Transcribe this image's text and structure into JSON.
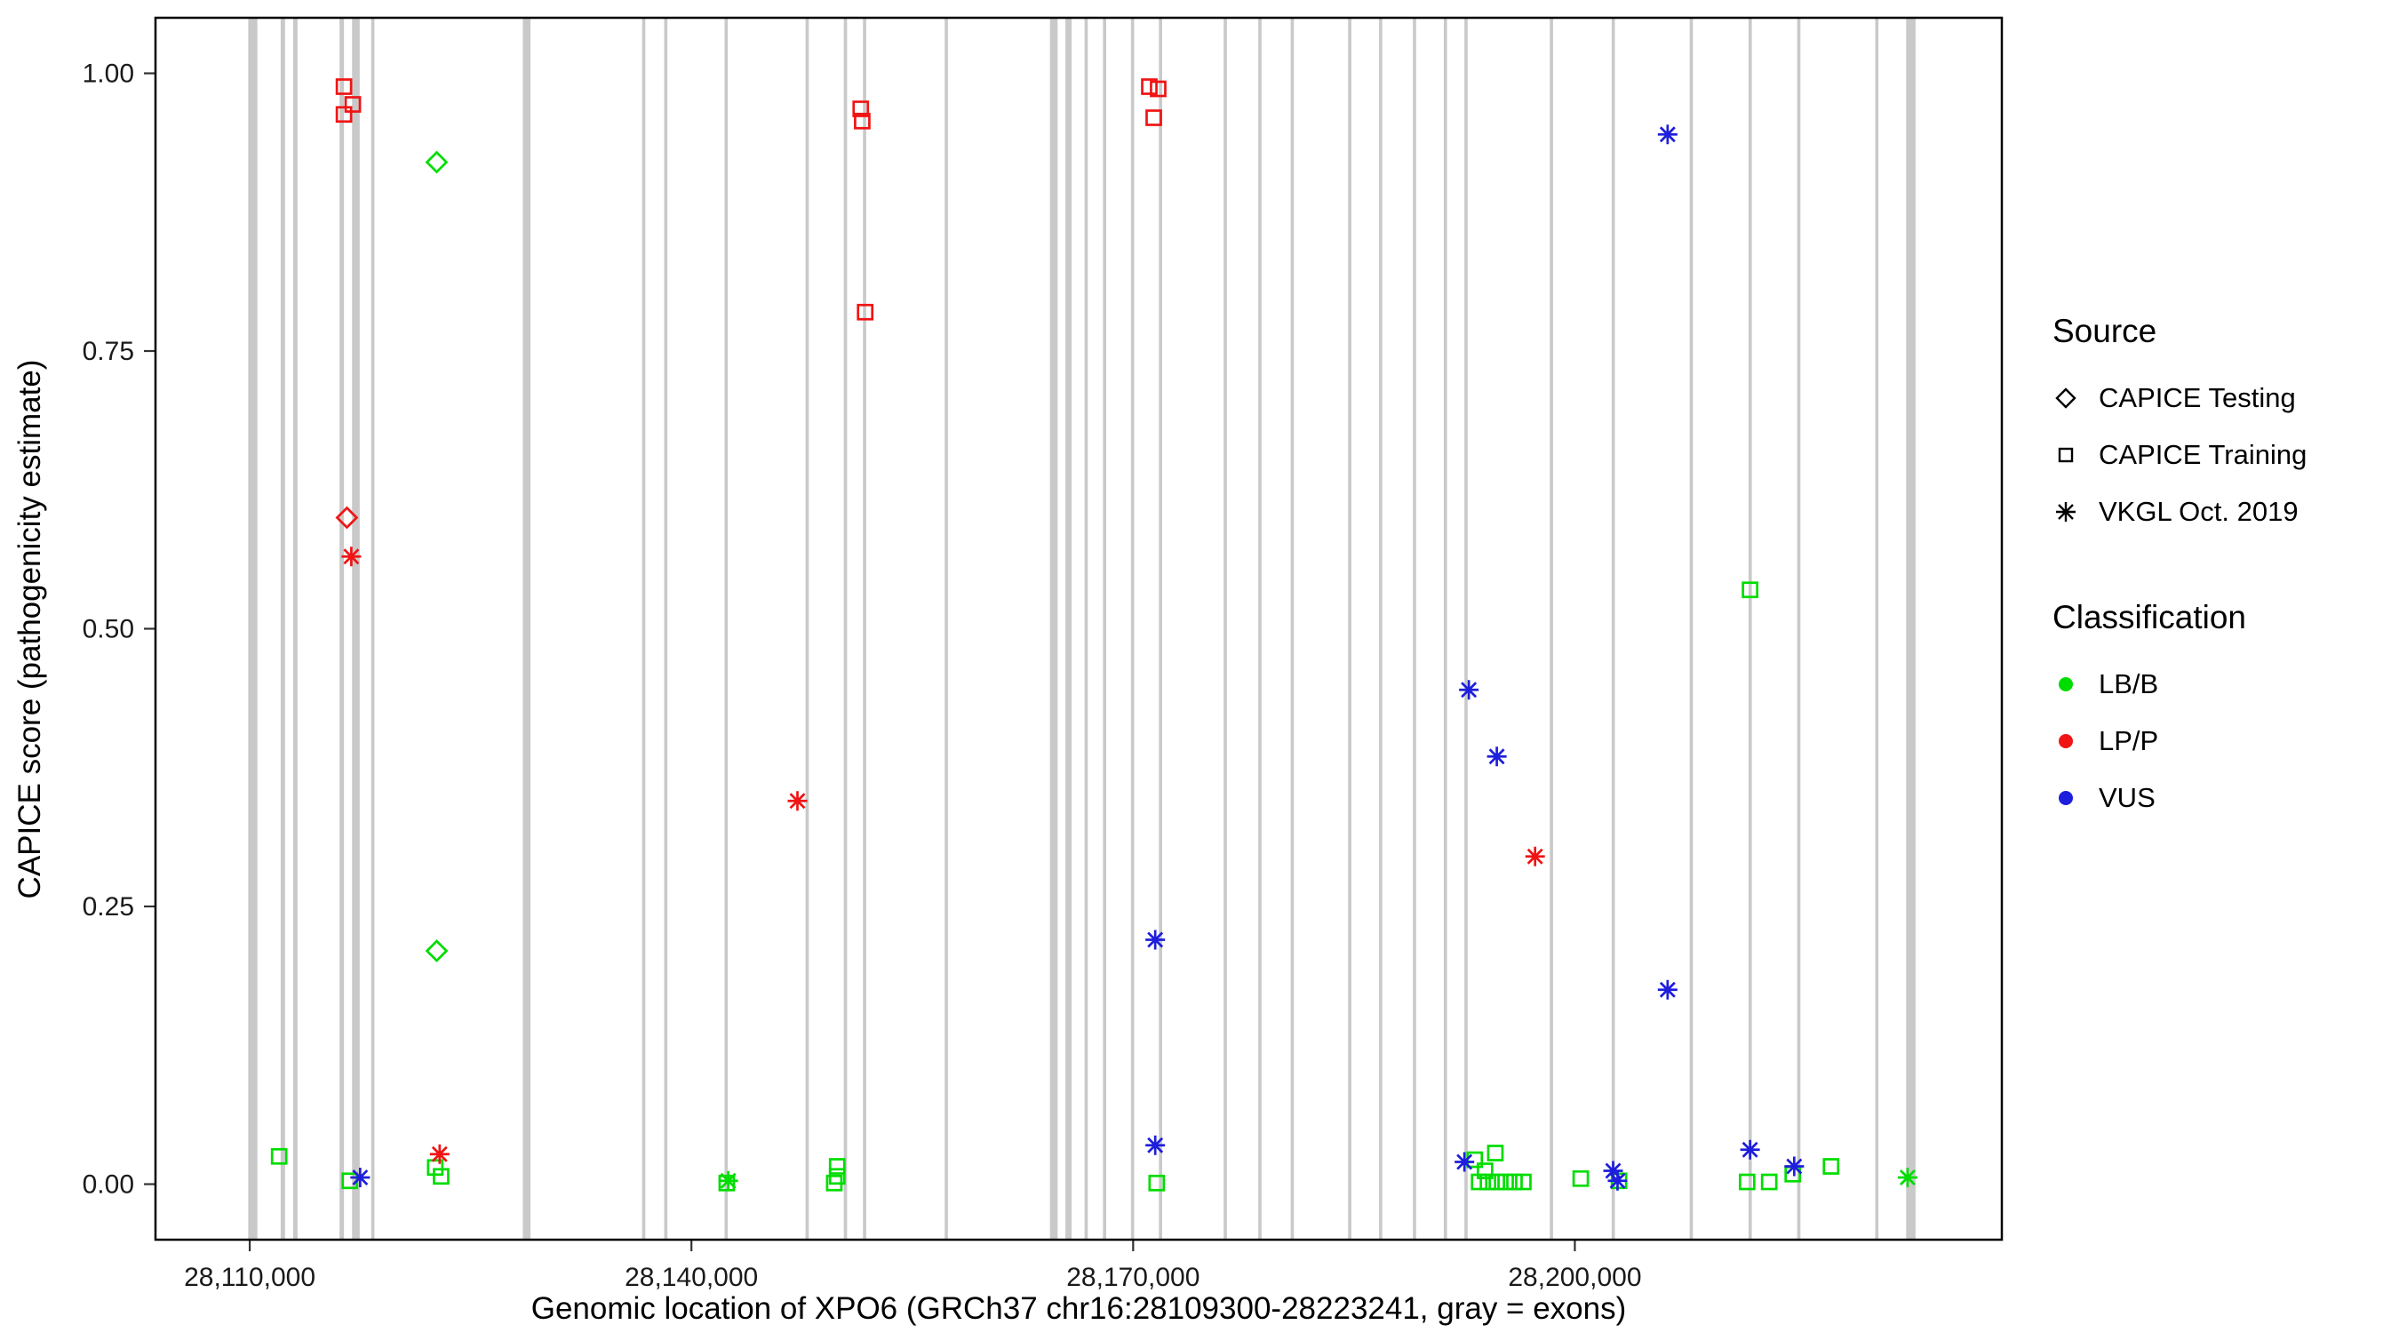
{
  "chart_data": {
    "type": "scatter",
    "title": "",
    "xlabel": "Genomic location of XPO6 (GRCh37 chr16:28109300-28223241, gray = exons)",
    "ylabel": "CAPICE score (pathogenicity estimate)",
    "xlim": [
      28103600,
      28229000
    ],
    "ylim": [
      -0.05,
      1.05
    ],
    "grid": false,
    "legend_position": "right",
    "x_ticks": [
      {
        "value": 28110000,
        "label": "28,110,000"
      },
      {
        "value": 28140000,
        "label": "28,140,000"
      },
      {
        "value": 28170000,
        "label": "28,170,000"
      },
      {
        "value": 28200000,
        "label": "28,200,000"
      }
    ],
    "y_ticks": [
      {
        "value": 0.0,
        "label": "0.00"
      },
      {
        "value": 0.25,
        "label": "0.25"
      },
      {
        "value": 0.5,
        "label": "0.50"
      },
      {
        "value": 0.75,
        "label": "0.75"
      },
      {
        "value": 1.0,
        "label": "1.00"
      }
    ],
    "exon_color": "#c9c9c9",
    "panel_border_color": "#000000",
    "class_colors": {
      "LB/B": "#00dd00",
      "LP/P": "#f01414",
      "VUS": "#1e1edc"
    },
    "exons": [
      [
        28109900,
        620
      ],
      [
        28112100,
        300
      ],
      [
        28112950,
        300
      ],
      [
        28116100,
        300
      ],
      [
        28116950,
        520
      ],
      [
        28118250,
        220
      ],
      [
        28128550,
        520
      ],
      [
        28136650,
        220
      ],
      [
        28138150,
        220
      ],
      [
        28142250,
        220
      ],
      [
        28147750,
        220
      ],
      [
        28150350,
        220
      ],
      [
        28151650,
        220
      ],
      [
        28157200,
        220
      ],
      [
        28164350,
        520
      ],
      [
        28165400,
        420
      ],
      [
        28166700,
        220
      ],
      [
        28167950,
        220
      ],
      [
        28169850,
        220
      ],
      [
        28171750,
        220
      ],
      [
        28176150,
        220
      ],
      [
        28178500,
        220
      ],
      [
        28180700,
        220
      ],
      [
        28184600,
        220
      ],
      [
        28186700,
        220
      ],
      [
        28189000,
        220
      ],
      [
        28191100,
        220
      ],
      [
        28192500,
        220
      ],
      [
        28198300,
        220
      ],
      [
        28202500,
        220
      ],
      [
        28207800,
        220
      ],
      [
        28211800,
        220
      ],
      [
        28215100,
        220
      ],
      [
        28220400,
        220
      ],
      [
        28222500,
        640
      ]
    ],
    "series": [
      {
        "name": "CAPICE Testing",
        "shape": "diamond",
        "points": [
          {
            "x": 28116600,
            "y": 0.6,
            "cls": "LP/P"
          },
          {
            "x": 28122700,
            "y": 0.92,
            "cls": "LB/B"
          },
          {
            "x": 28122700,
            "y": 0.21,
            "cls": "LB/B"
          }
        ]
      },
      {
        "name": "CAPICE Training",
        "shape": "square",
        "points": [
          {
            "x": 28116400,
            "y": 0.988,
            "cls": "LP/P"
          },
          {
            "x": 28117000,
            "y": 0.972,
            "cls": "LP/P"
          },
          {
            "x": 28116400,
            "y": 0.963,
            "cls": "LP/P"
          },
          {
            "x": 28151500,
            "y": 0.968,
            "cls": "LP/P"
          },
          {
            "x": 28151600,
            "y": 0.957,
            "cls": "LP/P"
          },
          {
            "x": 28151800,
            "y": 0.785,
            "cls": "LP/P"
          },
          {
            "x": 28171100,
            "y": 0.988,
            "cls": "LP/P"
          },
          {
            "x": 28171700,
            "y": 0.986,
            "cls": "LP/P"
          },
          {
            "x": 28171400,
            "y": 0.96,
            "cls": "LP/P"
          },
          {
            "x": 28112000,
            "y": 0.025,
            "cls": "LB/B"
          },
          {
            "x": 28116800,
            "y": 0.003,
            "cls": "LB/B"
          },
          {
            "x": 28122600,
            "y": 0.015,
            "cls": "LB/B"
          },
          {
            "x": 28123000,
            "y": 0.007,
            "cls": "LB/B"
          },
          {
            "x": 28142400,
            "y": 0.001,
            "cls": "LB/B"
          },
          {
            "x": 28149900,
            "y": 0.016,
            "cls": "LB/B"
          },
          {
            "x": 28149900,
            "y": 0.007,
            "cls": "LB/B"
          },
          {
            "x": 28149700,
            "y": 0.001,
            "cls": "LB/B"
          },
          {
            "x": 28171600,
            "y": 0.001,
            "cls": "LB/B"
          },
          {
            "x": 28193200,
            "y": 0.022,
            "cls": "LB/B"
          },
          {
            "x": 28193900,
            "y": 0.012,
            "cls": "LB/B"
          },
          {
            "x": 28194600,
            "y": 0.028,
            "cls": "LB/B"
          },
          {
            "x": 28193500,
            "y": 0.002,
            "cls": "LB/B"
          },
          {
            "x": 28194100,
            "y": 0.002,
            "cls": "LB/B"
          },
          {
            "x": 28194700,
            "y": 0.002,
            "cls": "LB/B"
          },
          {
            "x": 28195300,
            "y": 0.002,
            "cls": "LB/B"
          },
          {
            "x": 28195900,
            "y": 0.002,
            "cls": "LB/B"
          },
          {
            "x": 28196500,
            "y": 0.002,
            "cls": "LB/B"
          },
          {
            "x": 28200400,
            "y": 0.005,
            "cls": "LB/B"
          },
          {
            "x": 28203000,
            "y": 0.003,
            "cls": "LB/B"
          },
          {
            "x": 28211900,
            "y": 0.535,
            "cls": "LB/B"
          },
          {
            "x": 28211700,
            "y": 0.002,
            "cls": "LB/B"
          },
          {
            "x": 28213200,
            "y": 0.002,
            "cls": "LB/B"
          },
          {
            "x": 28214800,
            "y": 0.009,
            "cls": "LB/B"
          },
          {
            "x": 28217400,
            "y": 0.016,
            "cls": "LB/B"
          }
        ]
      },
      {
        "name": "VKGL Oct. 2019",
        "shape": "asterisk",
        "points": [
          {
            "x": 28116900,
            "y": 0.565,
            "cls": "LP/P"
          },
          {
            "x": 28122900,
            "y": 0.027,
            "cls": "LP/P"
          },
          {
            "x": 28147200,
            "y": 0.345,
            "cls": "LP/P"
          },
          {
            "x": 28197300,
            "y": 0.295,
            "cls": "LP/P"
          },
          {
            "x": 28142500,
            "y": 0.003,
            "cls": "LB/B"
          },
          {
            "x": 28222600,
            "y": 0.006,
            "cls": "LB/B"
          },
          {
            "x": 28117500,
            "y": 0.006,
            "cls": "VUS"
          },
          {
            "x": 28171500,
            "y": 0.22,
            "cls": "VUS"
          },
          {
            "x": 28171500,
            "y": 0.035,
            "cls": "VUS"
          },
          {
            "x": 28192500,
            "y": 0.02,
            "cls": "VUS"
          },
          {
            "x": 28192800,
            "y": 0.445,
            "cls": "VUS"
          },
          {
            "x": 28194700,
            "y": 0.385,
            "cls": "VUS"
          },
          {
            "x": 28202600,
            "y": 0.012,
            "cls": "VUS"
          },
          {
            "x": 28202900,
            "y": 0.003,
            "cls": "VUS"
          },
          {
            "x": 28206300,
            "y": 0.945,
            "cls": "VUS"
          },
          {
            "x": 28206300,
            "y": 0.175,
            "cls": "VUS"
          },
          {
            "x": 28211900,
            "y": 0.031,
            "cls": "VUS"
          },
          {
            "x": 28214900,
            "y": 0.016,
            "cls": "VUS"
          }
        ]
      }
    ]
  },
  "legend": {
    "source": {
      "title": "Source",
      "items": [
        {
          "label": "CAPICE Testing",
          "shape": "diamond"
        },
        {
          "label": "CAPICE Training",
          "shape": "square"
        },
        {
          "label": "VKGL Oct. 2019",
          "shape": "asterisk"
        }
      ]
    },
    "classification": {
      "title": "Classification",
      "items": [
        {
          "label": "LB/B",
          "color": "#00dd00"
        },
        {
          "label": "LP/P",
          "color": "#f01414"
        },
        {
          "label": "VUS",
          "color": "#1e1edc"
        }
      ]
    }
  }
}
